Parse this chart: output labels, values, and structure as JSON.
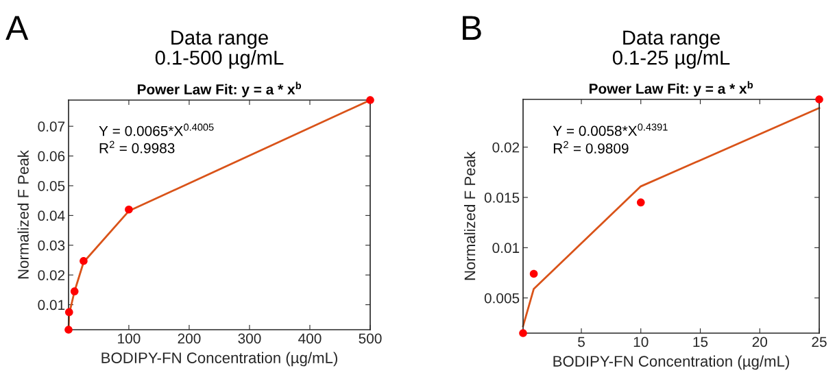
{
  "chart_data": [
    {
      "type": "scatter",
      "title": "Power Law Fit: y = a * x$^{b}$",
      "subtitle": "Data range\n0.1-500 µg/mL",
      "xlabel": "BODIPY-FN Concentration (µg/mL)",
      "ylabel": "Normalized F Peak",
      "annotations": [
        "A",
        "Y = 0.0065*X$^{0.4005}$",
        "R$^{2}$ = 0.9983"
      ],
      "xlim": [
        0.1,
        500
      ],
      "xticks": [
        100,
        200,
        300,
        400,
        500
      ],
      "ylim": [
        0.0016,
        0.0788
      ],
      "yticks": [
        0.01,
        0.02,
        0.03,
        0.04,
        0.05,
        0.06,
        0.07
      ],
      "grid": false,
      "series": [
        {
          "type": "line",
          "marker": "none",
          "color": "#d95319",
          "x": [
            0.1,
            1,
            10,
            25,
            100,
            500
          ],
          "values": [
            0.0016,
            0.0068,
            0.0145,
            0.0243,
            0.0415,
            0.0788
          ]
        },
        {
          "marker": "circle",
          "color": "#ff0000",
          "x": [
            0.1,
            1,
            10,
            25,
            100,
            500
          ],
          "values": [
            0.0016,
            0.0075,
            0.0145,
            0.0247,
            0.042,
            0.0788
          ]
        }
      ]
    },
    {
      "type": "scatter",
      "title": "Power Law Fit: y = a * x$^{b}$",
      "subtitle": "Data range\n0.1-25 µg/mL",
      "xlabel": "BODIPY-FN Concentration (µg/mL)",
      "ylabel": "Normalized F Peak",
      "annotations": [
        "B",
        "Y = 0.0058*X$^{0.4391}$",
        "R$^{2}$ = 0.9809"
      ],
      "xlim": [
        0.1,
        25
      ],
      "xticks": [
        5,
        10,
        15,
        20,
        25
      ],
      "ylim": [
        0.0015,
        0.02475
      ],
      "yticks": [
        0.005,
        0.01,
        0.015,
        0.02
      ],
      "grid": false,
      "series": [
        {
          "type": "line",
          "marker": "none",
          "color": "#d95319",
          "x": [
            0.1,
            1,
            10,
            25
          ],
          "values": [
            0.0022,
            0.0059,
            0.0161,
            0.0239
          ]
        },
        {
          "marker": "circle",
          "color": "#ff0000",
          "x": [
            0.1,
            1,
            10,
            25
          ],
          "values": [
            0.0015,
            0.0074,
            0.0145,
            0.02475
          ]
        }
      ]
    }
  ]
}
